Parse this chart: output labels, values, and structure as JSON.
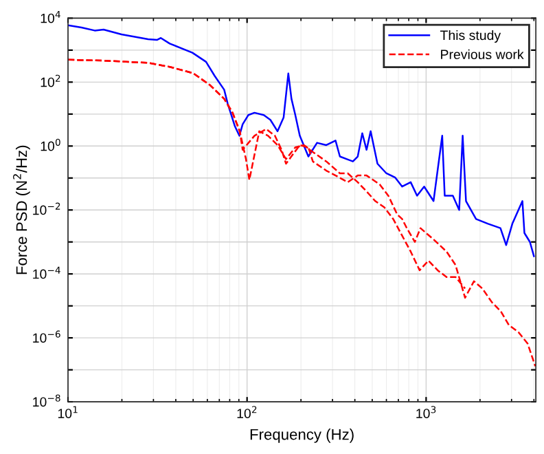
{
  "chart_data": {
    "type": "line",
    "xlabel": "Frequency (Hz)",
    "ylabel": "Force PSD (N$^{2}$/Hz)",
    "log": "xy",
    "grid": true,
    "legend": "top right",
    "xlim": [
      10,
      4100
    ],
    "ylim": [
      1e-08,
      10000
    ],
    "xticks": [
      {
        "value": 10,
        "label": "10$^{1}$"
      },
      {
        "value": 100,
        "label": "10$^{2}$"
      },
      {
        "value": 1000,
        "label": "10$^{3}$"
      }
    ],
    "yticks": [
      {
        "value": 1e-08,
        "label": "10$^{−8}$"
      },
      {
        "value": 1e-07,
        "label": null
      },
      {
        "value": 1e-06,
        "label": "10$^{−6}$"
      },
      {
        "value": 1e-05,
        "label": null
      },
      {
        "value": 0.0001,
        "label": "10$^{−4}$"
      },
      {
        "value": 0.001,
        "label": null
      },
      {
        "value": 0.01,
        "label": "10$^{−2}$"
      },
      {
        "value": 0.1,
        "label": null
      },
      {
        "value": 1,
        "label": "10$^{0}$"
      },
      {
        "value": 10,
        "label": null
      },
      {
        "value": 100,
        "label": "10$^{2}$"
      },
      {
        "value": 1000,
        "label": null
      },
      {
        "value": 10000,
        "label": "10$^{4}$"
      }
    ],
    "series": [
      {
        "name": "This study",
        "color": "#0000ff",
        "line_style": "solid",
        "x": [
          10,
          11.9,
          14.1,
          15.8,
          19.9,
          28,
          31.5,
          33,
          37,
          49.5,
          59,
          66,
          74.5,
          78,
          85.6,
          90.6,
          94.5,
          101.6,
          110,
          124,
          135,
          148,
          160,
          170,
          177,
          186,
          197,
          220,
          246,
          277,
          312,
          330,
          390,
          415,
          440,
          465,
          490,
          535,
          600,
          670,
          735,
          820,
          890,
          975,
          1100,
          1230,
          1270,
          1410,
          1530,
          1600,
          1670,
          1900,
          2220,
          2600,
          2800,
          3030,
          3450,
          3540,
          3800,
          4000
        ],
        "values": [
          6000,
          5100,
          4100,
          4400,
          3100,
          2200,
          2100,
          2400,
          1600,
          830,
          430,
          155,
          58,
          21,
          4.1,
          2.1,
          4.8,
          9.3,
          11,
          9.3,
          6.6,
          2.9,
          7.8,
          186,
          30,
          9.3,
          2.1,
          0.47,
          1.26,
          1.07,
          1.48,
          0.47,
          0.33,
          0.47,
          2.5,
          0.76,
          2.9,
          0.28,
          0.14,
          0.105,
          0.054,
          0.074,
          0.028,
          0.054,
          0.019,
          2.1,
          0.028,
          0.028,
          0.01,
          2.1,
          0.019,
          0.0052,
          0.0037,
          0.0027,
          0.0008,
          0.0037,
          0.019,
          0.0019,
          0.001,
          0.00036
        ]
      },
      {
        "name": "Previous work",
        "color": "#ff0000",
        "line_style": "dashed",
        "x": [
          10,
          15.8,
          28,
          37,
          50,
          62,
          74.5,
          83,
          91,
          94.5,
          110,
          128,
          143,
          156,
          165,
          197,
          220,
          233,
          277,
          312,
          365,
          415,
          465,
          550,
          615,
          690,
          735,
          780,
          865,
          930,
          1100,
          1300,
          1460,
          1650,
          1850,
          2060,
          2330,
          2610,
          2900,
          3280,
          3690,
          4070
        ],
        "values": [
          500,
          470,
          400,
          300,
          190,
          81,
          30,
          11,
          2.9,
          0.76,
          2.1,
          3.4,
          2.1,
          0.76,
          0.28,
          1.07,
          0.91,
          0.33,
          0.17,
          0.12,
          0.074,
          0.12,
          0.12,
          0.063,
          0.028,
          0.0072,
          0.0052,
          0.0027,
          0.001,
          0.0027,
          0.0012,
          0.0005,
          0.00019,
          1.8e-05,
          5.9e-05,
          3.5e-05,
          1.3e-05,
          6.8e-06,
          2.5e-06,
          1.5e-06,
          6.6e-07,
          1.3e-07
        ]
      },
      {
        "color": "#ff0000",
        "line_style": "dashed",
        "x": [
          10,
          15.8,
          28,
          37,
          50,
          62,
          74.5,
          83,
          91,
          98.6,
          103,
          117,
          131,
          148,
          165,
          186,
          208,
          233,
          277,
          330,
          365,
          415,
          465,
          520,
          585,
          655,
          820,
          920,
          1030,
          1160,
          1300,
          1460,
          1650
        ],
        "values": [
          500,
          470,
          400,
          300,
          190,
          81,
          30,
          11,
          2.9,
          0.39,
          0.087,
          2.9,
          2.1,
          1.07,
          0.39,
          0.91,
          1.07,
          0.65,
          0.33,
          0.14,
          0.14,
          0.074,
          0.038,
          0.019,
          0.012,
          0.0052,
          0.0005,
          0.00013,
          0.00026,
          0.00013,
          8e-05,
          8e-05,
          3.5e-05
        ]
      }
    ]
  }
}
